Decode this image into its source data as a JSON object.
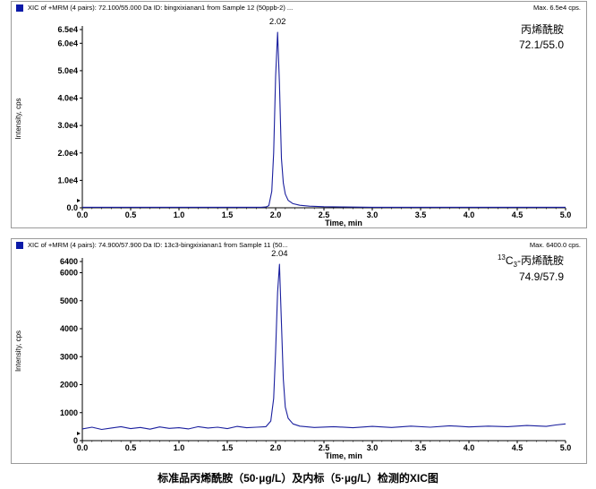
{
  "caption": "标准品丙烯酰胺（50·µg/L）及内标（5·µg/L）检测的XIC图",
  "chart_data": [
    {
      "type": "line",
      "header": "XIC of +MRM (4 pairs): 72.100/55.000 Da ID: bingxixianan1 from Sample 12 (50ppb-2) ...",
      "max_label": "Max. 6.5e4 cps.",
      "xlabel": "Time, min",
      "ylabel": "Intensity, cps",
      "xlim": [
        0.0,
        5.0
      ],
      "ylim": [
        0,
        65000
      ],
      "x_ticks": [
        "0.0",
        "0.5",
        "1.0",
        "1.5",
        "2.0",
        "2.5",
        "3.0",
        "3.5",
        "4.0",
        "4.5",
        "5.0"
      ],
      "y_ticks": [
        {
          "v": 0,
          "label": "0.0"
        },
        {
          "v": 10000,
          "label": "1.0e4"
        },
        {
          "v": 20000,
          "label": "2.0e4"
        },
        {
          "v": 30000,
          "label": "3.0e4"
        },
        {
          "v": 40000,
          "label": "4.0e4"
        },
        {
          "v": 50000,
          "label": "5.0e4"
        },
        {
          "v": 60000,
          "label": "6.0e4"
        },
        {
          "v": 65000,
          "label": "6.5e4"
        }
      ],
      "peak_label": {
        "x": 2.02,
        "text": "2.02"
      },
      "annotation": {
        "name": "丙烯酰胺",
        "transition": "72.1/55.0"
      },
      "series": [
        {
          "color": "#1a1f9e",
          "points": [
            [
              0.0,
              200
            ],
            [
              0.5,
              200
            ],
            [
              1.0,
              200
            ],
            [
              1.5,
              200
            ],
            [
              1.85,
              200
            ],
            [
              1.9,
              300
            ],
            [
              1.93,
              800
            ],
            [
              1.96,
              6000
            ],
            [
              1.98,
              20000
            ],
            [
              2.0,
              48000
            ],
            [
              2.02,
              64000
            ],
            [
              2.04,
              45000
            ],
            [
              2.06,
              18000
            ],
            [
              2.08,
              9000
            ],
            [
              2.1,
              5000
            ],
            [
              2.13,
              2700
            ],
            [
              2.18,
              1500
            ],
            [
              2.25,
              900
            ],
            [
              2.35,
              600
            ],
            [
              2.5,
              400
            ],
            [
              2.7,
              300
            ],
            [
              3.0,
              200
            ],
            [
              3.5,
              200
            ],
            [
              4.0,
              200
            ],
            [
              4.5,
              200
            ],
            [
              5.0,
              200
            ]
          ]
        }
      ]
    },
    {
      "type": "line",
      "header": "XIC of +MRM (4 pairs): 74.900/57.900 Da ID: 13c3-bingxixianan1 from Sample 11 (50...",
      "max_label": "Max. 6400.0 cps.",
      "xlabel": "Time, min",
      "ylabel": "Intensity, cps",
      "xlim": [
        0.0,
        5.0
      ],
      "ylim": [
        0,
        6400
      ],
      "x_ticks": [
        "0.0",
        "0.5",
        "1.0",
        "1.5",
        "2.0",
        "2.5",
        "3.0",
        "3.5",
        "4.0",
        "4.5",
        "5.0"
      ],
      "y_ticks": [
        {
          "v": 0,
          "label": "0"
        },
        {
          "v": 1000,
          "label": "1000"
        },
        {
          "v": 2000,
          "label": "2000"
        },
        {
          "v": 3000,
          "label": "3000"
        },
        {
          "v": 4000,
          "label": "4000"
        },
        {
          "v": 5000,
          "label": "5000"
        },
        {
          "v": 6000,
          "label": "6000"
        },
        {
          "v": 6400,
          "label": "6400"
        }
      ],
      "peak_label": {
        "x": 2.04,
        "text": "2.04"
      },
      "annotation": {
        "name_super": "13",
        "name_main": "C",
        "name_sub": "3",
        "name_rest": "-丙烯酰胺",
        "transition": "74.9/57.9"
      },
      "series": [
        {
          "color": "#1a1f9e",
          "points": [
            [
              0.0,
              420
            ],
            [
              0.1,
              480
            ],
            [
              0.2,
              400
            ],
            [
              0.3,
              450
            ],
            [
              0.4,
              500
            ],
            [
              0.5,
              430
            ],
            [
              0.6,
              470
            ],
            [
              0.7,
              410
            ],
            [
              0.8,
              490
            ],
            [
              0.9,
              440
            ],
            [
              1.0,
              460
            ],
            [
              1.1,
              420
            ],
            [
              1.2,
              500
            ],
            [
              1.3,
              450
            ],
            [
              1.4,
              480
            ],
            [
              1.5,
              430
            ],
            [
              1.6,
              510
            ],
            [
              1.7,
              460
            ],
            [
              1.8,
              480
            ],
            [
              1.9,
              500
            ],
            [
              1.95,
              700
            ],
            [
              1.98,
              1500
            ],
            [
              2.0,
              3200
            ],
            [
              2.02,
              5300
            ],
            [
              2.04,
              6300
            ],
            [
              2.06,
              4200
            ],
            [
              2.08,
              2200
            ],
            [
              2.1,
              1200
            ],
            [
              2.13,
              800
            ],
            [
              2.18,
              600
            ],
            [
              2.25,
              520
            ],
            [
              2.4,
              470
            ],
            [
              2.6,
              500
            ],
            [
              2.8,
              460
            ],
            [
              3.0,
              510
            ],
            [
              3.2,
              470
            ],
            [
              3.4,
              520
            ],
            [
              3.6,
              480
            ],
            [
              3.8,
              530
            ],
            [
              4.0,
              490
            ],
            [
              4.2,
              520
            ],
            [
              4.4,
              500
            ],
            [
              4.6,
              540
            ],
            [
              4.8,
              510
            ],
            [
              4.9,
              560
            ],
            [
              5.0,
              600
            ]
          ]
        }
      ]
    }
  ]
}
